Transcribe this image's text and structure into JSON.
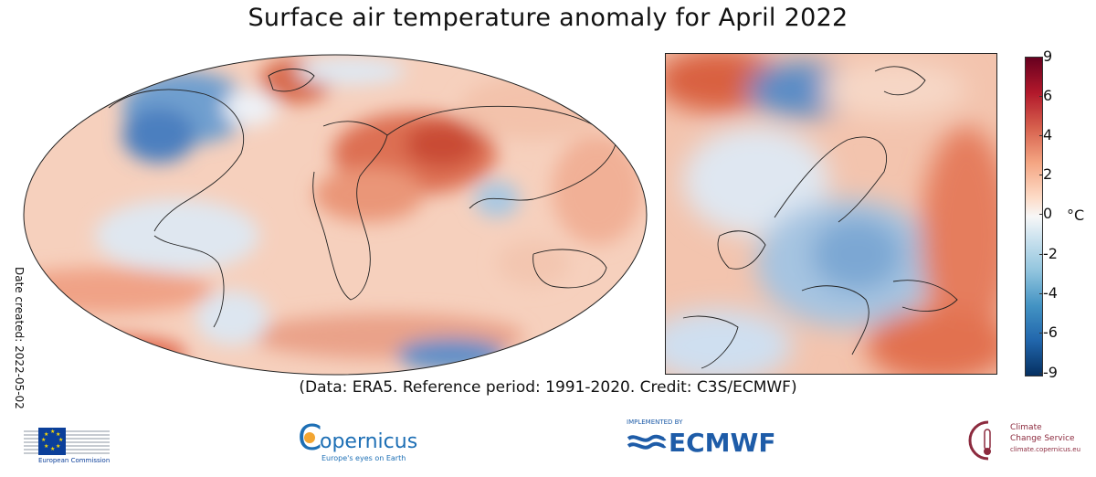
{
  "title": "Surface air temperature anomaly for April 2022",
  "date_created": "Date created: 2022-05-02",
  "credit": "(Data: ERA5.  Reference period: 1991-2020.  Credit: C3S/ECMWF)",
  "colorbar": {
    "unit": "°C",
    "ticks": [
      "9",
      "6",
      "4",
      "2",
      "0",
      "-2",
      "-4",
      "-6",
      "-9"
    ],
    "colors": [
      "#67001f",
      "#b2182b",
      "#d6604d",
      "#f4a582",
      "#fddbc7",
      "#f7f7f7",
      "#d1e5f0",
      "#92c5de",
      "#4393c3",
      "#2166ac",
      "#053061"
    ]
  },
  "logos": {
    "eu_text": "European Commission",
    "copernicus_text": "opernicus",
    "copernicus_c": "C",
    "copernicus_tagline": "Europe's eyes on Earth",
    "ecmwf_pre": "IMPLEMENTED BY",
    "ecmwf_text": "ECMWF",
    "c3s_line1": "Climate",
    "c3s_line2": "Change Service",
    "c3s_line3": "climate.copernicus.eu"
  }
}
